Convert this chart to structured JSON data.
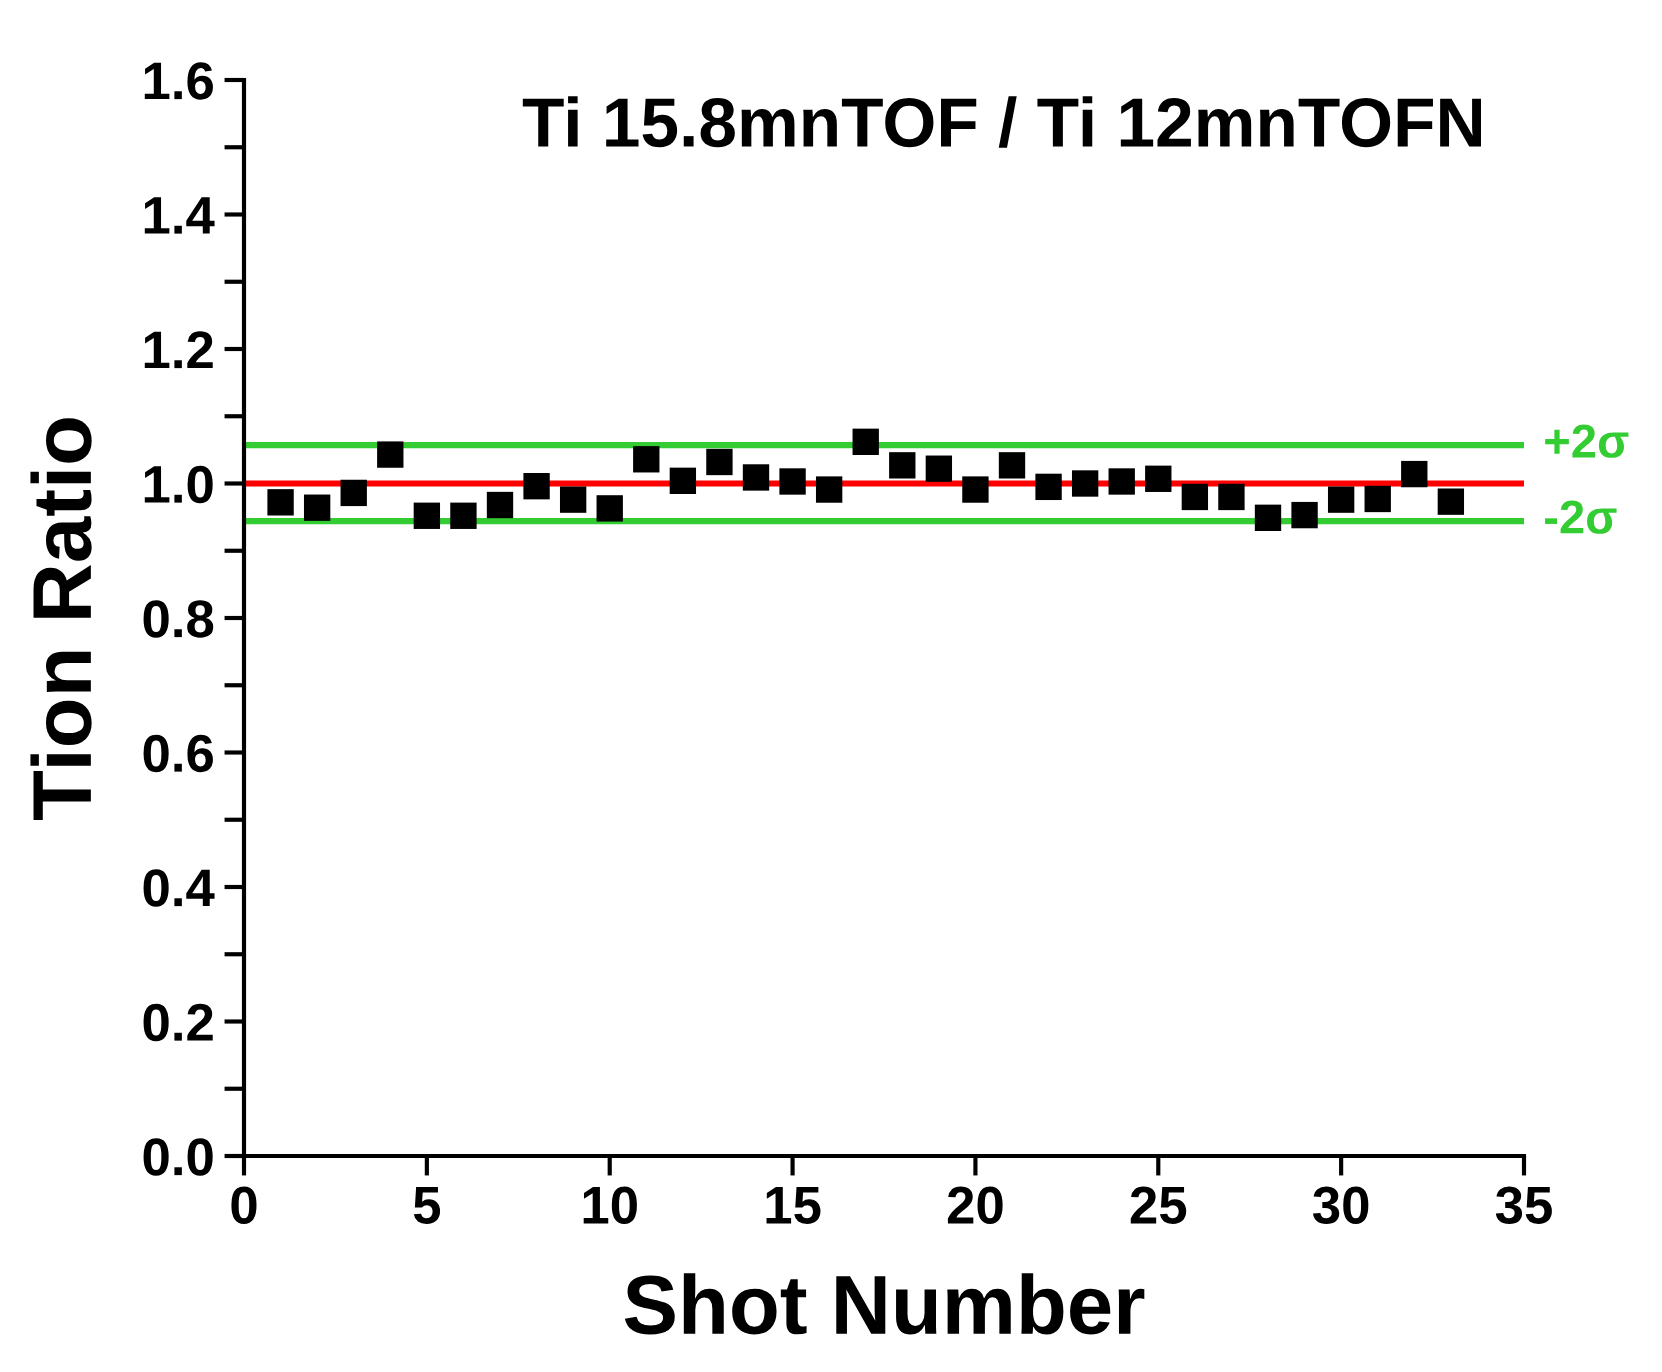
{
  "chart_data": {
    "type": "scatter",
    "title": "Ti 15.8mnTOF / Ti 12mnTOFN",
    "xlabel": "Shot Number",
    "ylabel": "Tion Ratio",
    "x": [
      1,
      2,
      3,
      4,
      5,
      6,
      7,
      8,
      9,
      10,
      11,
      12,
      13,
      14,
      15,
      16,
      17,
      18,
      19,
      20,
      21,
      22,
      23,
      24,
      25,
      26,
      27,
      28,
      29,
      30,
      31,
      32,
      33
    ],
    "series": [
      {
        "color": "#000000",
        "values": [
          0.972,
          0.964,
          0.986,
          1.043,
          0.952,
          0.952,
          0.968,
          0.996,
          0.976,
          0.963,
          1.036,
          1.004,
          1.032,
          1.009,
          1.003,
          0.991,
          1.062,
          1.027,
          1.022,
          0.991,
          1.027,
          0.995,
          1.0,
          1.003,
          1.007,
          0.98,
          0.98,
          0.949,
          0.953,
          0.976,
          0.977,
          1.014,
          0.973
        ]
      }
    ],
    "marker": "square",
    "grid": false,
    "legend": false,
    "xlim": [
      0,
      35
    ],
    "xticks": [
      0,
      5,
      10,
      15,
      20,
      25,
      30,
      35
    ],
    "ylim": [
      0,
      1.6
    ],
    "yticks": [
      {
        "value": 0,
        "label": "0.0"
      },
      {
        "value": 0.1,
        "label": null
      },
      {
        "value": 0.2,
        "label": "0.2"
      },
      {
        "value": 0.3,
        "label": null
      },
      {
        "value": 0.4,
        "label": "0.4"
      },
      {
        "value": 0.5,
        "label": null
      },
      {
        "value": 0.6,
        "label": "0.6"
      },
      {
        "value": 0.7,
        "label": null
      },
      {
        "value": 0.8,
        "label": "0.8"
      },
      {
        "value": 0.9,
        "label": null
      },
      {
        "value": 1.0,
        "label": "1.0"
      },
      {
        "value": 1.1,
        "label": null
      },
      {
        "value": 1.2,
        "label": "1.2"
      },
      {
        "value": 1.3,
        "label": null
      },
      {
        "value": 1.4,
        "label": "1.4"
      },
      {
        "value": 1.5,
        "label": null
      },
      {
        "value": 1.6,
        "label": "1.6"
      }
    ],
    "ref_lines": [
      {
        "axis": "y",
        "value": 1.0,
        "label": null,
        "color": "#ff0000"
      },
      {
        "axis": "y",
        "value": 1.057,
        "label": "+2σ",
        "color": "#33cc33"
      },
      {
        "axis": "y",
        "value": 0.944,
        "label": "-2σ",
        "color": "#33cc33"
      }
    ]
  }
}
